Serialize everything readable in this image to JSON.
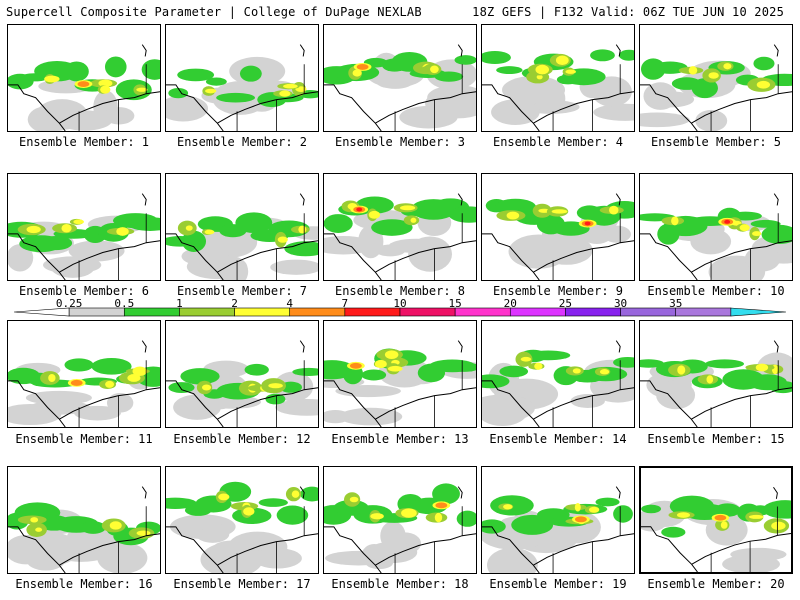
{
  "header": {
    "title": "Supercell Composite Parameter | College of DuPage NEXLAB",
    "run_info": "18Z GEFS | F132 Valid: 06Z TUE JUN 10 2025"
  },
  "colorbar": {
    "labels": [
      "0.25",
      "0.5",
      "1",
      "2",
      "4",
      "7",
      "10",
      "15",
      "20",
      "25",
      "30",
      "35"
    ],
    "colors": [
      "#ffffff",
      "#d3d3d3",
      "#32cd32",
      "#9acd32",
      "#ffff33",
      "#ff8c1a",
      "#ff1a1a",
      "#ee1166",
      "#ff33cc",
      "#dd33ff",
      "#8822ee",
      "#9966dd",
      "#aa77dd",
      "#33ddee"
    ]
  },
  "palette": {
    "gray": "#d3d3d3",
    "green": "#32cd32",
    "lime": "#9acd32",
    "yellow": "#ffff33",
    "orange": "#ff8c1a",
    "red": "#ff1a1a",
    "boundary": "#000000"
  },
  "panels": [
    {
      "label": "Ensemble Member: 1",
      "intensity": "orange"
    },
    {
      "label": "Ensemble Member: 2",
      "intensity": "yellow"
    },
    {
      "label": "Ensemble Member: 3",
      "intensity": "orange"
    },
    {
      "label": "Ensemble Member: 4",
      "intensity": "yellow"
    },
    {
      "label": "Ensemble Member: 5",
      "intensity": "yellow"
    },
    {
      "label": "Ensemble Member: 6",
      "intensity": "yellow"
    },
    {
      "label": "Ensemble Member: 7",
      "intensity": "yellow"
    },
    {
      "label": "Ensemble Member: 8",
      "intensity": "red"
    },
    {
      "label": "Ensemble Member: 9",
      "intensity": "red"
    },
    {
      "label": "Ensemble Member: 10",
      "intensity": "red"
    },
    {
      "label": "Ensemble Member: 11",
      "intensity": "orange"
    },
    {
      "label": "Ensemble Member: 12",
      "intensity": "yellow"
    },
    {
      "label": "Ensemble Member: 13",
      "intensity": "orange"
    },
    {
      "label": "Ensemble Member: 14",
      "intensity": "yellow"
    },
    {
      "label": "Ensemble Member: 15",
      "intensity": "yellow"
    },
    {
      "label": "Ensemble Member: 16",
      "intensity": "yellow"
    },
    {
      "label": "Ensemble Member: 17",
      "intensity": "yellow"
    },
    {
      "label": "Ensemble Member: 18",
      "intensity": "orange"
    },
    {
      "label": "Ensemble Member: 19",
      "intensity": "orange"
    },
    {
      "label": "Ensemble Member: 20",
      "intensity": "orange",
      "selected": true
    }
  ]
}
